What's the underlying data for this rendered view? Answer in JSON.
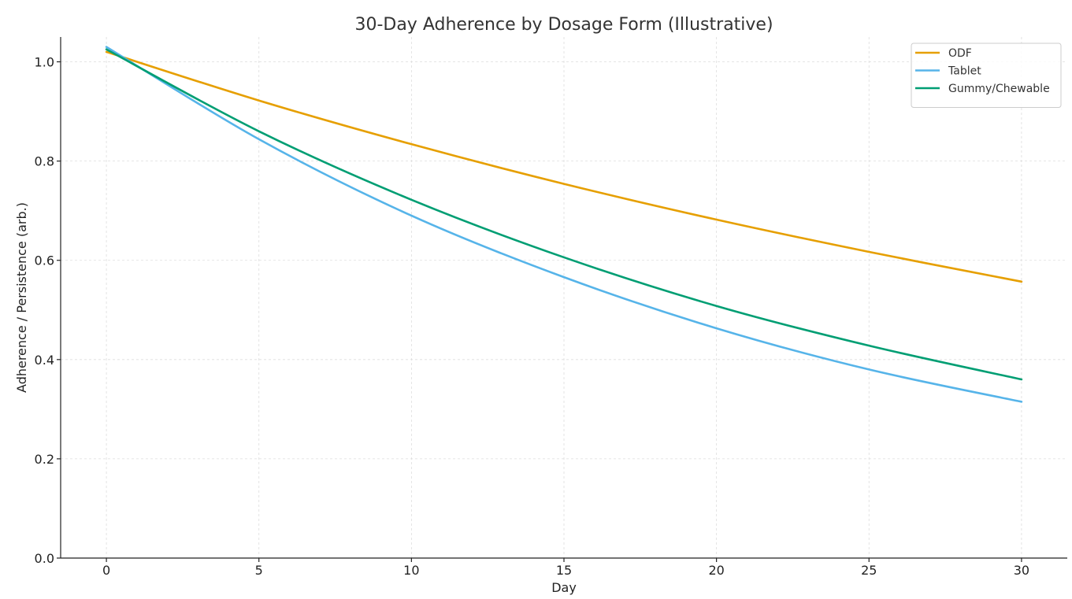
{
  "chart_data": {
    "type": "line",
    "title": "30-Day Adherence by Dosage Form (Illustrative)",
    "xlabel": "Day",
    "ylabel": "Adherence / Persistence (arb.)",
    "xlim": [
      -1.5,
      31.5
    ],
    "ylim": [
      0,
      1.05
    ],
    "xticks": [
      0,
      5,
      10,
      15,
      20,
      25,
      30
    ],
    "xtick_labels": [
      "0",
      "5",
      "10",
      "15",
      "20",
      "25",
      "30"
    ],
    "yticks": [
      0.0,
      0.2,
      0.4,
      0.6,
      0.8,
      1.0
    ],
    "ytick_labels": [
      "0.0",
      "0.2",
      "0.4",
      "0.6",
      "0.8",
      "1.0"
    ],
    "grid": true,
    "legend_position": "top-right",
    "x": [
      0,
      5,
      10,
      15,
      20,
      25,
      30
    ],
    "series": [
      {
        "name": "ODF",
        "color": "#E69F00",
        "values": [
          1.02,
          0.922,
          0.834,
          0.754,
          0.682,
          0.617,
          0.557
        ]
      },
      {
        "name": "Tablet",
        "color": "#56B4E9",
        "values": [
          1.03,
          0.844,
          0.69,
          0.566,
          0.463,
          0.38,
          0.315
        ]
      },
      {
        "name": "Gummy/Chewable",
        "color": "#009E73",
        "values": [
          1.025,
          0.86,
          0.722,
          0.606,
          0.508,
          0.428,
          0.36
        ]
      }
    ]
  }
}
